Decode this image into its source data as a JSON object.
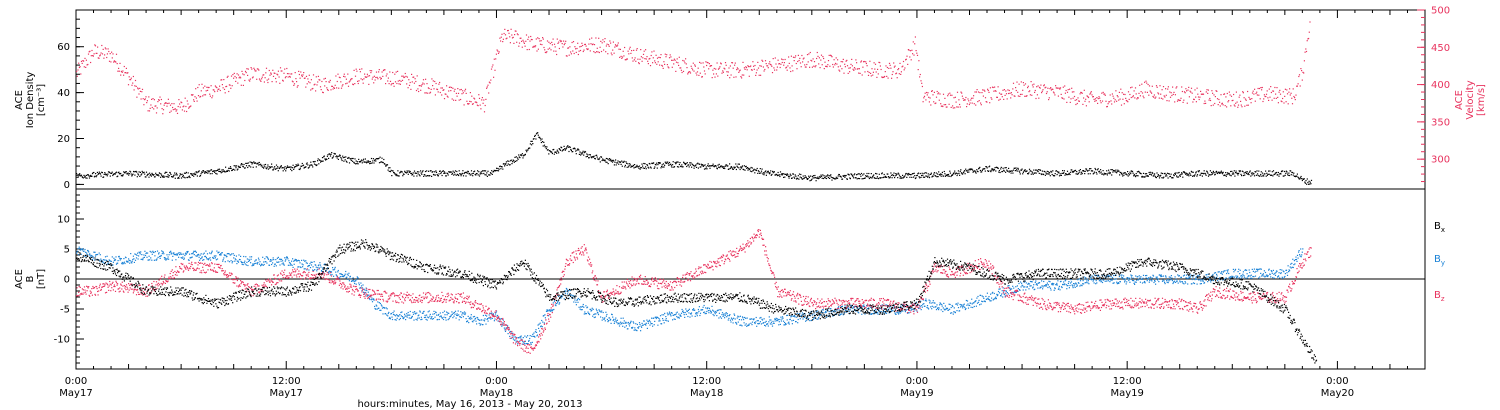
{
  "colors": {
    "black": "#000000",
    "pink": "#e8335e",
    "blue": "#1a82d6"
  },
  "xlabel": "hours:minutes, May 16, 2013 - May 20, 2013",
  "x_ticks": [
    {
      "top": "0:00",
      "bottom": "May17",
      "hour": 0
    },
    {
      "top": "12:00",
      "bottom": "May17",
      "hour": 12
    },
    {
      "top": "0:00",
      "bottom": "May18",
      "hour": 24
    },
    {
      "top": "12:00",
      "bottom": "May18",
      "hour": 36
    },
    {
      "top": "0:00",
      "bottom": "May19",
      "hour": 48
    },
    {
      "top": "12:00",
      "bottom": "May19",
      "hour": 60
    },
    {
      "top": "0:00",
      "bottom": "May20",
      "hour": 72
    }
  ],
  "chart_data": [
    {
      "type": "scatter",
      "panel": "plasma",
      "xlim_hours": [
        0,
        77
      ],
      "ylabel_left": [
        "ACE",
        "Ion Density",
        "[cm⁻³]"
      ],
      "ylim_left": [
        -2,
        76
      ],
      "yticks_left": [
        0,
        20,
        40,
        60
      ],
      "ylabel_right": [
        "ACE",
        "Velocity",
        "[km/s]"
      ],
      "ylim_right": [
        260,
        500
      ],
      "yticks_right": [
        300,
        350,
        400,
        450,
        500
      ],
      "series": [
        {
          "name": "Ion Density",
          "axis": "left",
          "color": "black",
          "approx_points": [
            [
              0,
              4
            ],
            [
              3,
              5
            ],
            [
              6,
              4
            ],
            [
              8,
              6
            ],
            [
              10,
              9
            ],
            [
              12,
              7
            ],
            [
              13.5,
              9
            ],
            [
              14.5,
              13
            ],
            [
              16,
              10
            ],
            [
              17.5,
              11
            ],
            [
              18,
              5
            ],
            [
              20,
              5
            ],
            [
              22,
              5
            ],
            [
              23.8,
              5
            ],
            [
              24.3,
              8
            ],
            [
              25.5,
              13
            ],
            [
              26.3,
              22
            ],
            [
              27,
              14
            ],
            [
              28,
              16
            ],
            [
              30,
              11
            ],
            [
              32,
              8
            ],
            [
              34,
              9
            ],
            [
              36,
              8
            ],
            [
              38,
              8
            ],
            [
              39.5,
              5
            ],
            [
              42,
              3
            ],
            [
              45,
              4
            ],
            [
              48,
              4
            ],
            [
              50,
              5
            ],
            [
              52,
              7
            ],
            [
              54,
              6
            ],
            [
              56,
              5
            ],
            [
              58,
              6
            ],
            [
              60,
              5
            ],
            [
              62,
              4
            ],
            [
              64,
              5
            ],
            [
              66,
              5
            ],
            [
              68,
              5
            ],
            [
              69.5,
              5
            ],
            [
              70,
              2
            ],
            [
              70.5,
              1
            ]
          ]
        },
        {
          "name": "Velocity",
          "axis": "right",
          "color": "pink",
          "approx_points": [
            [
              0,
              415
            ],
            [
              0.5,
              430
            ],
            [
              1,
              445
            ],
            [
              2,
              440
            ],
            [
              3,
              410
            ],
            [
              4,
              375
            ],
            [
              6,
              370
            ],
            [
              6.5,
              380
            ],
            [
              7,
              390
            ],
            [
              8,
              395
            ],
            [
              10,
              415
            ],
            [
              12,
              412
            ],
            [
              14,
              400
            ],
            [
              16,
              412
            ],
            [
              18,
              410
            ],
            [
              20,
              400
            ],
            [
              22,
              385
            ],
            [
              23.3,
              375
            ],
            [
              23.5,
              395
            ],
            [
              24.3,
              465
            ],
            [
              25,
              464
            ],
            [
              26,
              455
            ],
            [
              28,
              450
            ],
            [
              30,
              455
            ],
            [
              32,
              440
            ],
            [
              34,
              430
            ],
            [
              36,
              420
            ],
            [
              38,
              420
            ],
            [
              39.3,
              425
            ],
            [
              41,
              430
            ],
            [
              42,
              435
            ],
            [
              44,
              425
            ],
            [
              46,
              420
            ],
            [
              47,
              420
            ],
            [
              47.9,
              455
            ],
            [
              48.3,
              385
            ],
            [
              50,
              380
            ],
            [
              52,
              385
            ],
            [
              54,
              395
            ],
            [
              56,
              390
            ],
            [
              58,
              380
            ],
            [
              60,
              385
            ],
            [
              61,
              395
            ],
            [
              62,
              390
            ],
            [
              64,
              385
            ],
            [
              66,
              380
            ],
            [
              68,
              388
            ],
            [
              69.5,
              385
            ],
            [
              70,
              420
            ],
            [
              70.4,
              485
            ]
          ]
        }
      ]
    },
    {
      "type": "scatter",
      "panel": "magnetic",
      "xlim_hours": [
        0,
        77
      ],
      "ylabel_left": [
        "ACE",
        "B",
        "[nT]"
      ],
      "ylim_left": [
        -15,
        15
      ],
      "yticks_left": [
        -10,
        -5,
        0,
        5,
        10
      ],
      "zero_line": true,
      "series": [
        {
          "name": "Bx",
          "color": "black",
          "approx_points": [
            [
              0,
              4
            ],
            [
              2,
              2
            ],
            [
              4,
              -2
            ],
            [
              6,
              -2
            ],
            [
              8,
              -4
            ],
            [
              10,
              -2
            ],
            [
              12,
              -2
            ],
            [
              13.5,
              -1
            ],
            [
              15,
              5
            ],
            [
              16.5,
              6
            ],
            [
              18,
              4
            ],
            [
              20,
              2
            ],
            [
              22,
              1
            ],
            [
              24,
              -1
            ],
            [
              25.5,
              3
            ],
            [
              27,
              -3
            ],
            [
              29,
              -2
            ],
            [
              31,
              -4
            ],
            [
              34,
              -3
            ],
            [
              36,
              -3
            ],
            [
              38,
              -3
            ],
            [
              40,
              -5
            ],
            [
              42,
              -6
            ],
            [
              44,
              -5
            ],
            [
              46,
              -5
            ],
            [
              48,
              -4
            ],
            [
              49,
              3
            ],
            [
              51,
              2
            ],
            [
              53,
              0
            ],
            [
              55,
              1
            ],
            [
              57,
              1
            ],
            [
              59,
              1
            ],
            [
              61,
              3
            ],
            [
              63,
              2
            ],
            [
              65,
              0
            ],
            [
              67,
              -1
            ],
            [
              69,
              -5
            ],
            [
              70,
              -10
            ],
            [
              70.8,
              -14
            ]
          ]
        },
        {
          "name": "By",
          "color": "blue",
          "approx_points": [
            [
              0,
              5
            ],
            [
              2,
              3
            ],
            [
              4,
              4
            ],
            [
              6,
              4
            ],
            [
              8,
              4
            ],
            [
              10,
              3
            ],
            [
              12,
              3
            ],
            [
              14,
              2
            ],
            [
              16,
              0
            ],
            [
              17,
              -4
            ],
            [
              18,
              -6
            ],
            [
              19,
              -6
            ],
            [
              20,
              -6
            ],
            [
              21,
              -6
            ],
            [
              22,
              -6
            ],
            [
              23,
              -7
            ],
            [
              24,
              -6
            ],
            [
              25,
              -10
            ],
            [
              26,
              -10
            ],
            [
              27,
              -5
            ],
            [
              28,
              -2
            ],
            [
              29,
              -5
            ],
            [
              30,
              -6
            ],
            [
              32,
              -8
            ],
            [
              34,
              -6
            ],
            [
              36,
              -5
            ],
            [
              38,
              -7
            ],
            [
              40,
              -7
            ],
            [
              42,
              -6
            ],
            [
              44,
              -5
            ],
            [
              46,
              -5
            ],
            [
              47.5,
              -5
            ],
            [
              48.5,
              -4
            ],
            [
              50,
              -5
            ],
            [
              52,
              -3
            ],
            [
              54,
              -1
            ],
            [
              56,
              -1
            ],
            [
              58,
              0
            ],
            [
              60,
              0
            ],
            [
              62,
              0
            ],
            [
              64,
              0
            ],
            [
              66,
              1
            ],
            [
              68,
              1
            ],
            [
              69,
              1
            ],
            [
              70,
              5
            ]
          ]
        },
        {
          "name": "Bz",
          "color": "pink",
          "approx_points": [
            [
              0,
              -2
            ],
            [
              1,
              -2
            ],
            [
              2,
              -1
            ],
            [
              4,
              -2
            ],
            [
              6,
              2
            ],
            [
              8,
              2
            ],
            [
              10,
              -2
            ],
            [
              12,
              1
            ],
            [
              14,
              1
            ],
            [
              16,
              -2
            ],
            [
              18,
              -3
            ],
            [
              20,
              -3
            ],
            [
              22,
              -3
            ],
            [
              24,
              -6
            ],
            [
              25,
              -10
            ],
            [
              26,
              -12
            ],
            [
              27,
              -6
            ],
            [
              28,
              3
            ],
            [
              29,
              5
            ],
            [
              30,
              -3
            ],
            [
              32,
              0
            ],
            [
              34,
              -1
            ],
            [
              36,
              2
            ],
            [
              38,
              5
            ],
            [
              39,
              8
            ],
            [
              40,
              -2
            ],
            [
              42,
              -4
            ],
            [
              44,
              -4
            ],
            [
              46,
              -4
            ],
            [
              48,
              -5
            ],
            [
              49,
              2
            ],
            [
              50,
              1
            ],
            [
              52,
              3
            ],
            [
              53,
              -2
            ],
            [
              55,
              -4
            ],
            [
              57,
              -5
            ],
            [
              59,
              -4
            ],
            [
              61,
              -4
            ],
            [
              63,
              -4
            ],
            [
              64,
              -5
            ],
            [
              65,
              -2
            ],
            [
              67,
              -3
            ],
            [
              69,
              -3
            ],
            [
              70,
              3
            ],
            [
              70.5,
              5
            ]
          ]
        }
      ],
      "legend_right": [
        {
          "main": "B",
          "sub": "x",
          "color": "black"
        },
        {
          "main": "B",
          "sub": "y",
          "color": "blue"
        },
        {
          "main": "B",
          "sub": "z",
          "color": "pink"
        }
      ]
    }
  ]
}
